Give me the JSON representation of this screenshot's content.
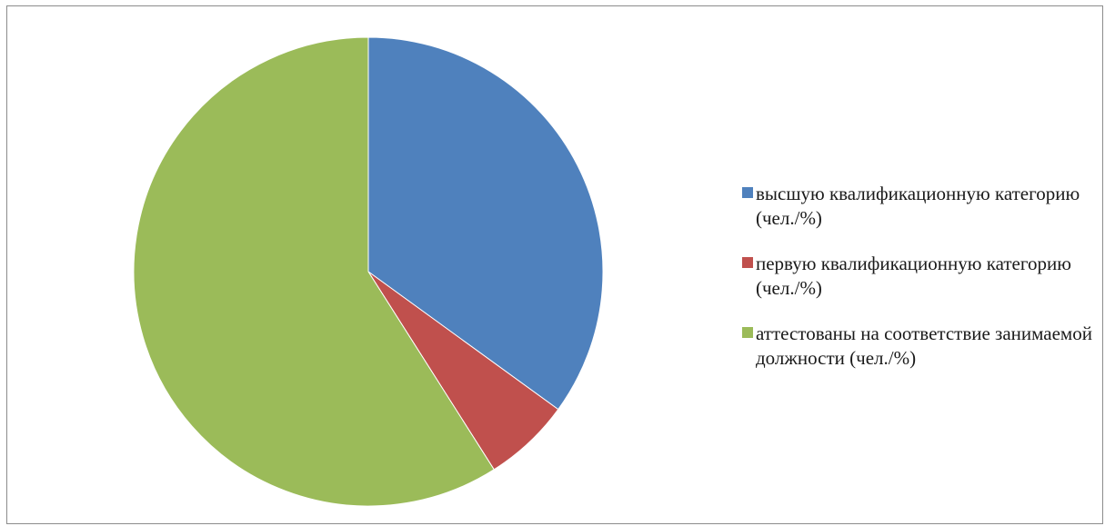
{
  "chart_data": {
    "type": "pie",
    "title": "",
    "start_angle_deg": 0,
    "direction": "clockwise",
    "legend_position": "right",
    "slices": [
      {
        "label": "высшую квалификационную категорию (чел./%)",
        "value": 35,
        "color": "#4F81BD"
      },
      {
        "label": "первую квалификационную категорию (чел./%)",
        "value": 6,
        "color": "#C0504D"
      },
      {
        "label": "аттестованы на соответствие занимаемой должности (чел./%)",
        "value": 59,
        "color": "#9BBB59"
      }
    ]
  }
}
